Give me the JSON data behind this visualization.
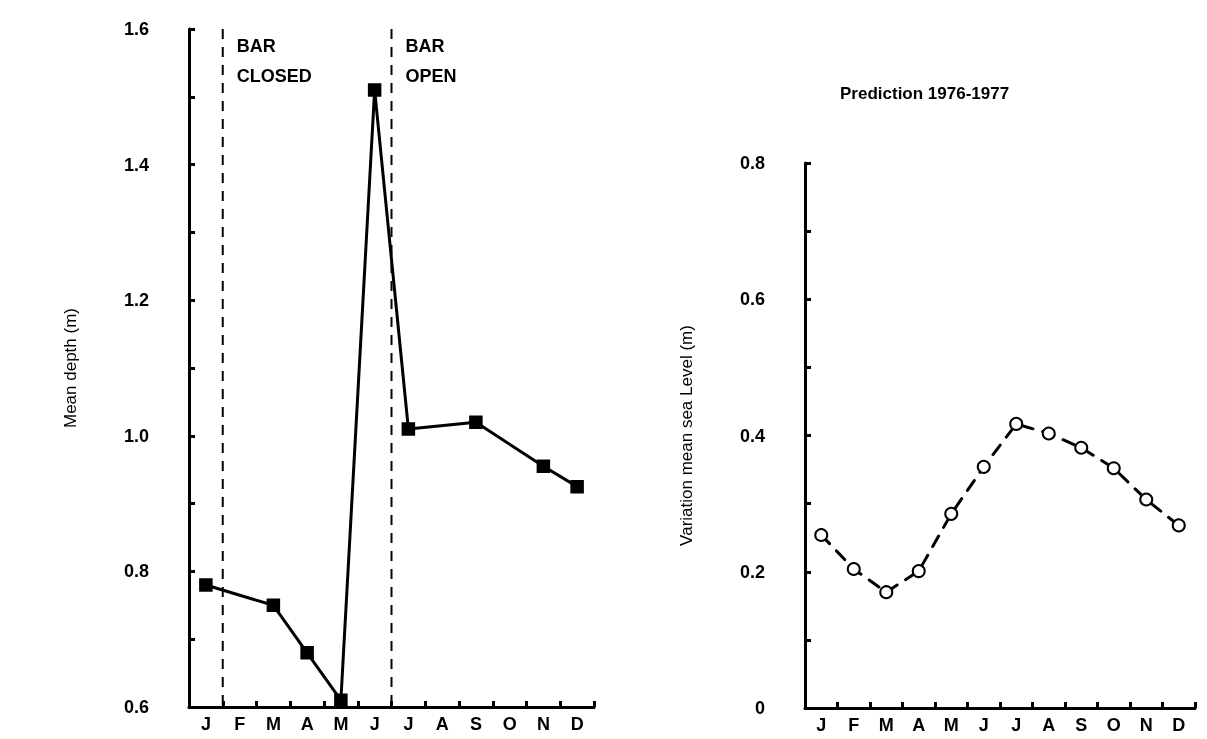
{
  "chart_data": [
    {
      "type": "line",
      "ylabel": "Mean depth (m)",
      "categories": [
        "J",
        "F",
        "M",
        "A",
        "M",
        "J",
        "J",
        "A",
        "S",
        "O",
        "N",
        "D"
      ],
      "ylim": [
        0.6,
        1.6
      ],
      "yticks": [
        0.6,
        {
          "value": 0.7,
          "label": null
        },
        0.8,
        {
          "value": 0.9,
          "label": null
        },
        {
          "value": 1,
          "label": "1.0"
        },
        {
          "value": 1.1,
          "label": null
        },
        1.2,
        {
          "value": 1.3,
          "label": null
        },
        1.4,
        {
          "value": 1.5,
          "label": null
        },
        1.6
      ],
      "series": [
        {
          "color": "#000000",
          "values": [
            0.78,
            null,
            0.75,
            0.68,
            0.61,
            1.51,
            1.01,
            null,
            1.02,
            null,
            0.955,
            0.925
          ]
        }
      ],
      "marker": "square",
      "line_style": "solid",
      "grid": false,
      "annotations": [
        "BAR CLOSED",
        "BAR OPEN"
      ]
    },
    {
      "type": "line",
      "title": "Prediction 1976-1977",
      "ylabel": "Variation mean sea Level (m)",
      "categories": [
        "J",
        "F",
        "M",
        "A",
        "M",
        "J",
        "J",
        "A",
        "S",
        "O",
        "N",
        "D"
      ],
      "ylim": [
        0,
        0.8
      ],
      "yticks": [
        0,
        {
          "value": 0.1,
          "label": null
        },
        0.2,
        {
          "value": 0.3,
          "label": null
        },
        0.4,
        {
          "value": 0.5,
          "label": null
        },
        0.6,
        {
          "value": 0.7,
          "label": null
        },
        0.8
      ],
      "series": [
        {
          "color": "#000000",
          "values": [
            0.254,
            0.204,
            0.17,
            0.201,
            0.285,
            0.354,
            0.417,
            0.403,
            0.382,
            0.352,
            0.306,
            0.268
          ]
        }
      ],
      "marker": "circle",
      "line_style": "dashed",
      "grid": false
    }
  ]
}
